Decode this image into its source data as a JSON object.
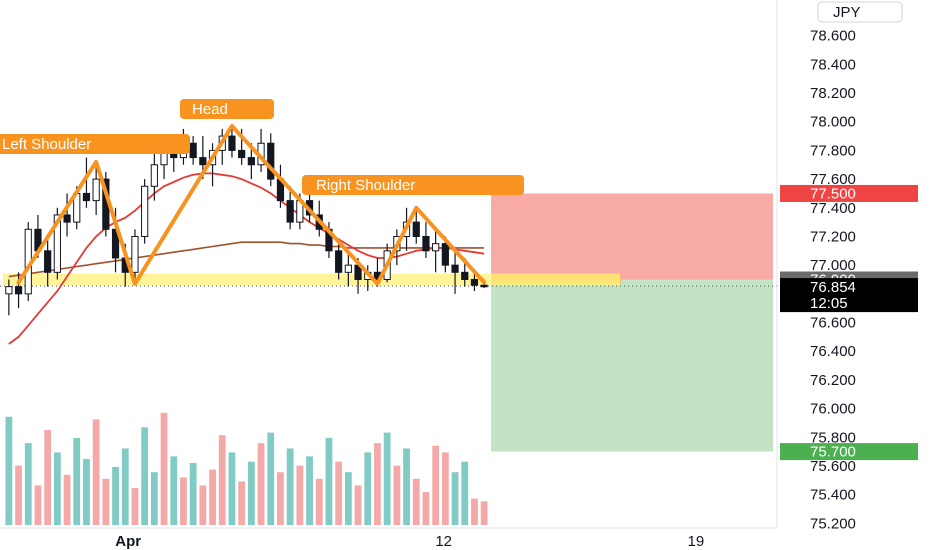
{
  "chart_data": {
    "type": "candlestick",
    "currency_label": "JPY",
    "y_ticks": [
      "78.600",
      "78.400",
      "78.200",
      "78.000",
      "77.800",
      "77.600",
      "77.400",
      "77.200",
      "77.000",
      "76.800",
      "76.600",
      "76.400",
      "76.200",
      "76.000",
      "75.800",
      "75.600",
      "75.400",
      "75.200"
    ],
    "y_tick_values": [
      78.6,
      78.4,
      78.2,
      78.0,
      77.8,
      77.6,
      77.4,
      77.2,
      77.0,
      76.8,
      76.6,
      76.4,
      76.2,
      76.0,
      75.8,
      75.6,
      75.4,
      75.2
    ],
    "ylim": [
      75.0,
      78.8
    ],
    "x_labels": [
      "Apr",
      "12",
      "19"
    ],
    "x_label_index": [
      12,
      45,
      71
    ],
    "bar_count": 80,
    "pattern_labels": {
      "left_shoulder": "Left Shoulder",
      "head": "Head",
      "right_shoulder": "Right Shoulder"
    },
    "pattern_points": [
      {
        "i": 1,
        "y": 76.88
      },
      {
        "i": 9,
        "y": 77.72
      },
      {
        "i": 13,
        "y": 76.87
      },
      {
        "i": 23,
        "y": 77.97
      },
      {
        "i": 38,
        "y": 76.87
      },
      {
        "i": 42,
        "y": 77.4
      },
      {
        "i": 49,
        "y": 76.88
      }
    ],
    "price_levels": {
      "stop_loss": "77.500",
      "entry": "76.900",
      "current": "76.854",
      "countdown": "12:05",
      "take_profit": "75.700"
    },
    "price_level_values": {
      "stop_loss": 77.5,
      "entry": 76.9,
      "current": 76.854,
      "take_profit": 75.7
    },
    "trade_box": {
      "start_index": 50,
      "end_index": 80,
      "entry": 76.9,
      "stop": 77.5,
      "target": 75.7
    },
    "neckline": {
      "price": 76.9,
      "start_index": 0,
      "end_index": 63
    },
    "candles": [
      [
        76.8,
        76.9,
        76.65,
        76.85
      ],
      [
        76.85,
        76.95,
        76.7,
        76.8
      ],
      [
        76.8,
        77.3,
        76.75,
        77.25
      ],
      [
        77.25,
        77.35,
        77.05,
        77.1
      ],
      [
        77.1,
        77.2,
        76.85,
        76.95
      ],
      [
        76.95,
        77.4,
        76.9,
        77.35
      ],
      [
        77.35,
        77.5,
        77.2,
        77.3
      ],
      [
        77.3,
        77.55,
        77.25,
        77.5
      ],
      [
        77.5,
        77.75,
        77.4,
        77.45
      ],
      [
        77.45,
        77.7,
        77.35,
        77.6
      ],
      [
        77.6,
        77.65,
        77.2,
        77.25
      ],
      [
        77.25,
        77.4,
        76.95,
        77.05
      ],
      [
        77.05,
        77.15,
        76.85,
        76.95
      ],
      [
        76.95,
        77.25,
        76.9,
        77.2
      ],
      [
        77.2,
        77.6,
        77.15,
        77.55
      ],
      [
        77.55,
        77.8,
        77.45,
        77.7
      ],
      [
        77.7,
        77.9,
        77.6,
        77.8
      ],
      [
        77.8,
        77.9,
        77.65,
        77.75
      ],
      [
        77.75,
        77.95,
        77.7,
        77.85
      ],
      [
        77.85,
        77.9,
        77.7,
        77.75
      ],
      [
        77.75,
        77.9,
        77.6,
        77.7
      ],
      [
        77.7,
        77.85,
        77.55,
        77.8
      ],
      [
        77.8,
        77.95,
        77.7,
        77.9
      ],
      [
        77.9,
        77.98,
        77.75,
        77.8
      ],
      [
        77.8,
        77.95,
        77.7,
        77.75
      ],
      [
        77.75,
        77.85,
        77.6,
        77.7
      ],
      [
        77.7,
        77.95,
        77.65,
        77.85
      ],
      [
        77.85,
        77.92,
        77.55,
        77.6
      ],
      [
        77.6,
        77.7,
        77.4,
        77.45
      ],
      [
        77.45,
        77.55,
        77.25,
        77.3
      ],
      [
        77.3,
        77.5,
        77.25,
        77.45
      ],
      [
        77.45,
        77.5,
        77.3,
        77.35
      ],
      [
        77.35,
        77.45,
        77.2,
        77.25
      ],
      [
        77.25,
        77.3,
        77.05,
        77.1
      ],
      [
        77.1,
        77.15,
        76.9,
        76.95
      ],
      [
        76.95,
        77.1,
        76.85,
        77.0
      ],
      [
        77.0,
        77.05,
        76.8,
        76.9
      ],
      [
        76.9,
        77.0,
        76.82,
        76.95
      ],
      [
        76.95,
        77.05,
        76.85,
        76.9
      ],
      [
        76.9,
        77.15,
        76.88,
        77.1
      ],
      [
        77.1,
        77.25,
        77.0,
        77.2
      ],
      [
        77.2,
        77.4,
        77.1,
        77.3
      ],
      [
        77.3,
        77.38,
        77.15,
        77.2
      ],
      [
        77.2,
        77.3,
        77.05,
        77.1
      ],
      [
        77.1,
        77.25,
        76.95,
        77.15
      ],
      [
        77.15,
        77.2,
        76.95,
        77.0
      ],
      [
        77.0,
        77.1,
        76.8,
        76.95
      ],
      [
        76.95,
        77.05,
        76.85,
        76.9
      ],
      [
        76.9,
        76.95,
        76.82,
        76.86
      ],
      [
        76.86,
        76.9,
        76.84,
        76.85
      ]
    ],
    "volume": [
      {
        "v": 0.82,
        "up": true
      },
      {
        "v": 0.45,
        "up": false
      },
      {
        "v": 0.62,
        "up": true
      },
      {
        "v": 0.3,
        "up": false
      },
      {
        "v": 0.72,
        "up": false
      },
      {
        "v": 0.55,
        "up": true
      },
      {
        "v": 0.38,
        "up": false
      },
      {
        "v": 0.66,
        "up": true
      },
      {
        "v": 0.5,
        "up": true
      },
      {
        "v": 0.8,
        "up": false
      },
      {
        "v": 0.35,
        "up": false
      },
      {
        "v": 0.44,
        "up": true
      },
      {
        "v": 0.58,
        "up": true
      },
      {
        "v": 0.28,
        "up": false
      },
      {
        "v": 0.74,
        "up": true
      },
      {
        "v": 0.4,
        "up": true
      },
      {
        "v": 0.85,
        "up": false
      },
      {
        "v": 0.52,
        "up": true
      },
      {
        "v": 0.36,
        "up": false
      },
      {
        "v": 0.47,
        "up": true
      },
      {
        "v": 0.3,
        "up": false
      },
      {
        "v": 0.42,
        "up": false
      },
      {
        "v": 0.68,
        "up": false
      },
      {
        "v": 0.55,
        "up": true
      },
      {
        "v": 0.33,
        "up": false
      },
      {
        "v": 0.48,
        "up": true
      },
      {
        "v": 0.62,
        "up": false
      },
      {
        "v": 0.7,
        "up": true
      },
      {
        "v": 0.4,
        "up": false
      },
      {
        "v": 0.58,
        "up": true
      },
      {
        "v": 0.45,
        "up": false
      },
      {
        "v": 0.52,
        "up": true
      },
      {
        "v": 0.35,
        "up": false
      },
      {
        "v": 0.66,
        "up": true
      },
      {
        "v": 0.48,
        "up": false
      },
      {
        "v": 0.4,
        "up": true
      },
      {
        "v": 0.3,
        "up": false
      },
      {
        "v": 0.55,
        "up": true
      },
      {
        "v": 0.62,
        "up": false
      },
      {
        "v": 0.7,
        "up": true
      },
      {
        "v": 0.45,
        "up": false
      },
      {
        "v": 0.58,
        "up": true
      },
      {
        "v": 0.35,
        "up": false
      },
      {
        "v": 0.25,
        "up": false
      },
      {
        "v": 0.6,
        "up": false
      },
      {
        "v": 0.55,
        "up": false
      },
      {
        "v": 0.4,
        "up": true
      },
      {
        "v": 0.48,
        "up": true
      },
      {
        "v": 0.2,
        "up": false
      },
      {
        "v": 0.18,
        "up": false
      }
    ],
    "ema_fast": [
      76.45,
      76.5,
      76.58,
      76.66,
      76.74,
      76.82,
      76.92,
      77.02,
      77.12,
      77.2,
      77.26,
      77.3,
      77.33,
      77.38,
      77.44,
      77.5,
      77.55,
      77.58,
      77.61,
      77.63,
      77.64,
      77.64,
      77.63,
      77.62,
      77.6,
      77.57,
      77.54,
      77.5,
      77.45,
      77.4,
      77.35,
      77.3,
      77.26,
      77.22,
      77.18,
      77.14,
      77.1,
      77.07,
      77.05,
      77.05,
      77.06,
      77.08,
      77.1,
      77.11,
      77.12,
      77.12,
      77.11,
      77.1,
      77.09,
      77.08
    ],
    "ema_slow": [
      76.92,
      76.93,
      76.94,
      76.95,
      76.96,
      76.97,
      76.98,
      76.99,
      77.0,
      77.01,
      77.02,
      77.03,
      77.04,
      77.05,
      77.06,
      77.07,
      77.08,
      77.09,
      77.1,
      77.11,
      77.12,
      77.13,
      77.14,
      77.15,
      77.16,
      77.16,
      77.16,
      77.16,
      77.16,
      77.15,
      77.15,
      77.14,
      77.14,
      77.13,
      77.13,
      77.12,
      77.12,
      77.12,
      77.12,
      77.12,
      77.12,
      77.12,
      77.12,
      77.12,
      77.12,
      77.12,
      77.12,
      77.12,
      77.12,
      77.12
    ],
    "colors": {
      "up": "#26a69a",
      "down": "#ef5350",
      "candle_body": "#131722",
      "pattern": "#f7931e",
      "neckline_band": "#fff176",
      "stop_zone": "#f8aaa7",
      "target_zone": "#c4e3c4",
      "ema_fast": "#e53935",
      "ema_slow": "#a0522d",
      "stop_badge": "#ef4444",
      "entry_badge": "#6b6b6b",
      "current_badge": "#000000",
      "target_badge": "#4caf50",
      "volume_up": "#80cbc4",
      "volume_down": "#f4a9a8"
    }
  }
}
